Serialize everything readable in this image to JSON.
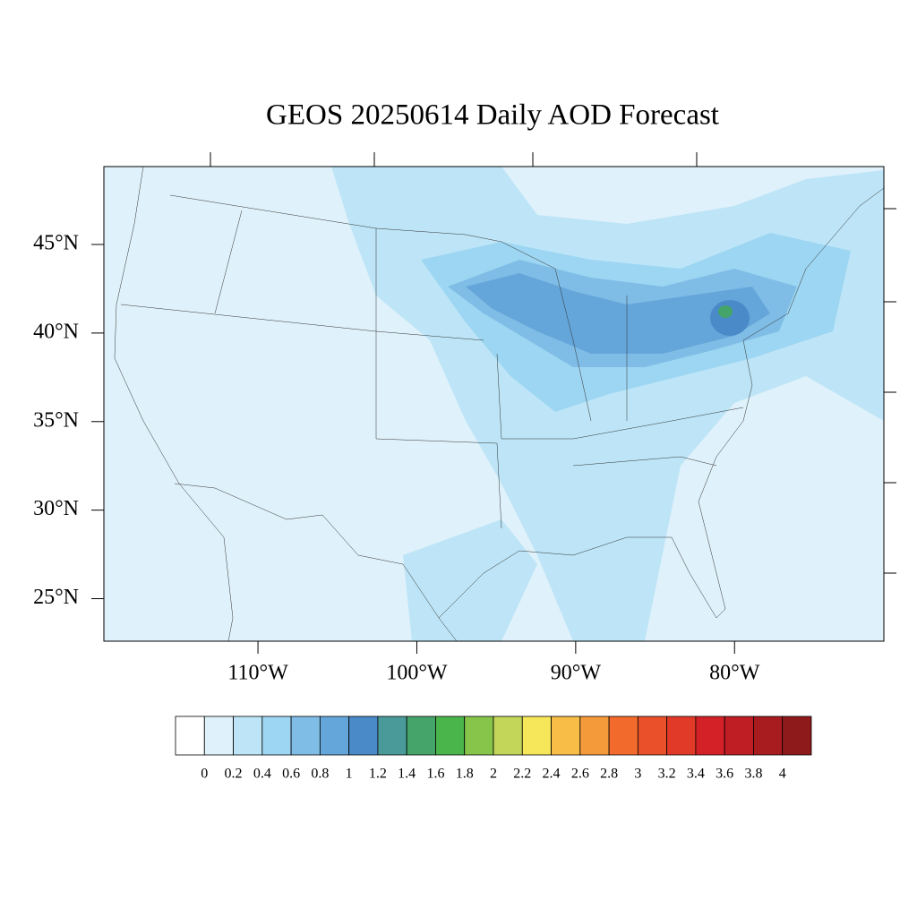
{
  "chart_data": {
    "type": "map",
    "title": "GEOS 20250614 Daily AOD Forecast",
    "xlim": [
      -119.7,
      -70.6
    ],
    "ylim": [
      22.6,
      49.4
    ],
    "xticks": [
      {
        "value": -110,
        "label": "110°W"
      },
      {
        "value": -100,
        "label": "100°W"
      },
      {
        "value": -90,
        "label": "90°W"
      },
      {
        "value": -80,
        "label": "80°W"
      }
    ],
    "yticks": [
      {
        "value": 45,
        "label": "45°N"
      },
      {
        "value": 40,
        "label": "40°N"
      },
      {
        "value": 35,
        "label": "35°N"
      },
      {
        "value": 30,
        "label": "30°N"
      },
      {
        "value": 25,
        "label": "25°N"
      }
    ],
    "colorbar": {
      "levels": [
        0,
        0.2,
        0.4,
        0.6,
        0.8,
        1,
        1.2,
        1.4,
        1.6,
        1.8,
        2,
        2.2,
        2.4,
        2.6,
        2.8,
        3,
        3.2,
        3.4,
        3.6,
        3.8,
        4
      ],
      "colors": [
        "#ffffff",
        "#dff1fa",
        "#bde5f7",
        "#9dd6f2",
        "#7fbde6",
        "#65a6da",
        "#4a8ac8",
        "#4a9a9a",
        "#45a46a",
        "#4ab54a",
        "#86c44a",
        "#c3d65a",
        "#f6e65a",
        "#f7bd47",
        "#f59a3a",
        "#f26a2c",
        "#ea5029",
        "#e13a28",
        "#d42027",
        "#bf1e24",
        "#a81c20",
        "#8f1a1c"
      ]
    }
  }
}
